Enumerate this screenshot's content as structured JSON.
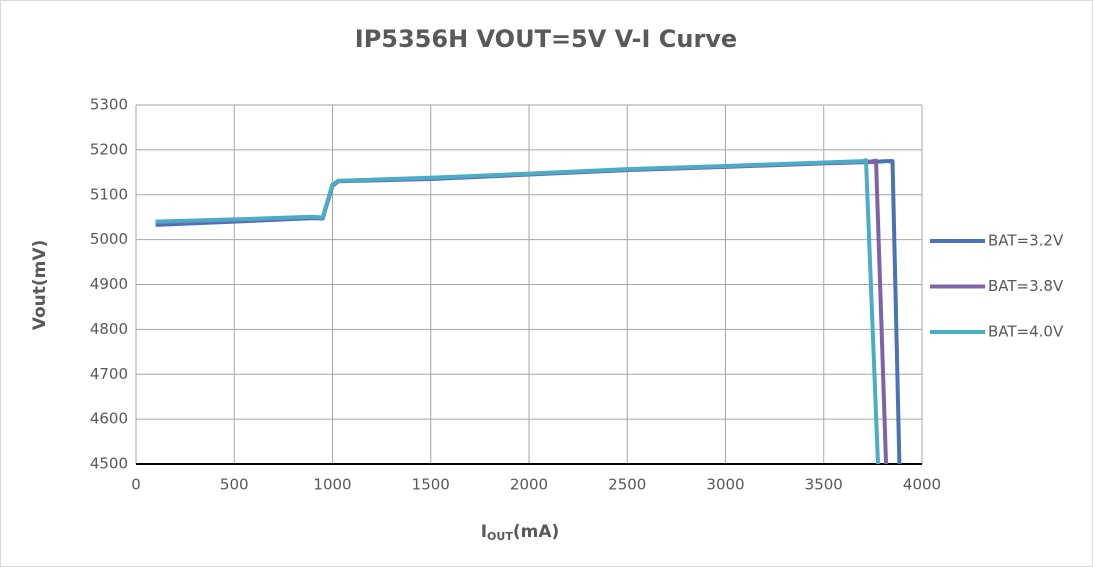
{
  "chart_data": {
    "type": "line",
    "title": "IP5356H  VOUT=5V  V-I Curve",
    "y_label": "Vout(mV)",
    "x_label": [
      "I",
      "OUT",
      "(mA)"
    ],
    "xlim": [
      0,
      4000
    ],
    "xticks": [
      0,
      500,
      1000,
      1500,
      2000,
      2500,
      3000,
      3500,
      4000
    ],
    "ylim": [
      4500,
      5300
    ],
    "yticks": [
      4500,
      4600,
      4700,
      4800,
      4900,
      5000,
      5100,
      5200,
      5300
    ],
    "grid": true,
    "legend": "right",
    "series": [
      {
        "name": "BAT=3.2V",
        "color": "#4a72b8",
        "x": [
          100,
          500,
          900,
          950,
          1000,
          1030,
          1500,
          2000,
          2500,
          3000,
          3500,
          3750,
          3820,
          3850,
          3885
        ],
        "values": [
          5033,
          5040,
          5048,
          5047,
          5120,
          5130,
          5135,
          5145,
          5155,
          5162,
          5170,
          5173,
          5175,
          5175,
          4500
        ]
      },
      {
        "name": "BAT=3.8V",
        "color": "#7f63a8",
        "x": [
          100,
          500,
          900,
          950,
          1000,
          1030,
          1500,
          2000,
          2500,
          3000,
          3500,
          3740,
          3766,
          3817
        ],
        "values": [
          5038,
          5043,
          5050,
          5048,
          5122,
          5131,
          5137,
          5146,
          5156,
          5163,
          5171,
          5174,
          5176,
          4500
        ]
      },
      {
        "name": "BAT=4.0V",
        "color": "#4bacc6",
        "x": [
          100,
          500,
          900,
          950,
          1000,
          1030,
          1500,
          2000,
          2500,
          3000,
          3500,
          3700,
          3715,
          3776
        ],
        "values": [
          5040,
          5045,
          5051,
          5049,
          5123,
          5131,
          5138,
          5147,
          5157,
          5164,
          5172,
          5175,
          5177,
          4500
        ]
      }
    ]
  }
}
